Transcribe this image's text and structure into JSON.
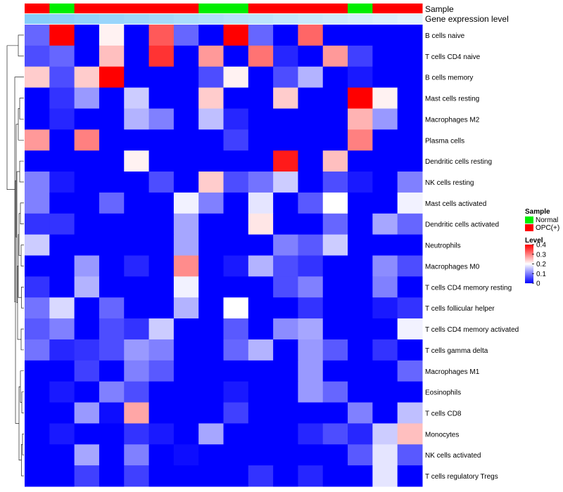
{
  "chart_data": {
    "type": "heatmap",
    "annotation_titles": {
      "sample": "Sample",
      "gene": "Gene expression level"
    },
    "sample_annotation": [
      "OPC(+)",
      "Normal",
      "OPC(+)",
      "OPC(+)",
      "OPC(+)",
      "OPC(+)",
      "OPC(+)",
      "Normal",
      "Normal",
      "OPC(+)",
      "OPC(+)",
      "OPC(+)",
      "OPC(+)",
      "Normal",
      "OPC(+)",
      "OPC(+)"
    ],
    "gene_expression_annotation": [
      1.0,
      0.95,
      0.9,
      0.85,
      0.8,
      0.75,
      0.7,
      0.65,
      0.6,
      0.55,
      0.5,
      0.45,
      0.4,
      0.35,
      0.3,
      0.25
    ],
    "rows": [
      "B cells naive",
      "T cells CD4 naive",
      "B cells memory",
      "Mast cells resting",
      "Macrophages M2",
      "Plasma cells",
      "Dendritic cells resting",
      "NK cells resting",
      "Mast cells activated",
      "Dendritic cells activated",
      "Neutrophils",
      "Macrophages M0",
      "T cells CD4 memory resting",
      "T cells follicular helper",
      "T cells CD4 memory activated",
      "T cells gamma delta",
      "Macrophages M1",
      "Eosinophils",
      "T cells CD8",
      "Monocytes",
      "NK cells activated",
      "T cells regulatory  Tregs"
    ],
    "values": [
      [
        0.08,
        0.4,
        0.0,
        0.21,
        0.0,
        0.33,
        0.08,
        0.0,
        0.4,
        0.08,
        0.0,
        0.32,
        0.0,
        0.0,
        0.0,
        0.0
      ],
      [
        0.06,
        0.08,
        0.0,
        0.25,
        0.0,
        0.36,
        0.0,
        0.28,
        0.0,
        0.31,
        0.03,
        0.0,
        0.28,
        0.05,
        0.0,
        0.0
      ],
      [
        0.24,
        0.06,
        0.24,
        0.4,
        0.0,
        0.0,
        0.0,
        0.06,
        0.21,
        0.0,
        0.06,
        0.14,
        0.0,
        0.02,
        0.0,
        0.0
      ],
      [
        0.0,
        0.04,
        0.12,
        0.0,
        0.16,
        0.0,
        0.0,
        0.24,
        0.0,
        0.0,
        0.24,
        0.0,
        0.0,
        0.4,
        0.21,
        0.0
      ],
      [
        0.0,
        0.03,
        0.0,
        0.0,
        0.14,
        0.1,
        0.0,
        0.15,
        0.03,
        0.0,
        0.0,
        0.0,
        0.0,
        0.26,
        0.12,
        0.0
      ],
      [
        0.28,
        0.0,
        0.3,
        0.0,
        0.0,
        0.0,
        0.0,
        0.0,
        0.05,
        0.0,
        0.0,
        0.0,
        0.0,
        0.3,
        0.0,
        0.0
      ],
      [
        0.0,
        0.0,
        0.0,
        0.0,
        0.21,
        0.0,
        0.0,
        0.0,
        0.0,
        0.0,
        0.38,
        0.0,
        0.25,
        0.0,
        0.0,
        0.0
      ],
      [
        0.1,
        0.02,
        0.0,
        0.0,
        0.0,
        0.06,
        0.0,
        0.24,
        0.06,
        0.09,
        0.16,
        0.0,
        0.06,
        0.02,
        0.0,
        0.1
      ],
      [
        0.1,
        0.0,
        0.0,
        0.08,
        0.0,
        0.0,
        0.19,
        0.1,
        0.0,
        0.18,
        0.0,
        0.07,
        0.2,
        0.0,
        0.0,
        0.19
      ],
      [
        0.04,
        0.04,
        0.0,
        0.0,
        0.0,
        0.0,
        0.13,
        0.0,
        0.0,
        0.22,
        0.0,
        0.0,
        0.08,
        0.0,
        0.13,
        0.08
      ],
      [
        0.16,
        0.0,
        0.0,
        0.0,
        0.0,
        0.0,
        0.13,
        0.0,
        0.0,
        0.0,
        0.1,
        0.07,
        0.16,
        0.0,
        0.0,
        0.0
      ],
      [
        0.0,
        0.0,
        0.12,
        0.0,
        0.03,
        0.0,
        0.29,
        0.0,
        0.02,
        0.14,
        0.06,
        0.04,
        0.0,
        0.0,
        0.11,
        0.06
      ],
      [
        0.04,
        0.0,
        0.14,
        0.0,
        0.0,
        0.0,
        0.19,
        0.0,
        0.0,
        0.0,
        0.06,
        0.1,
        0.0,
        0.0,
        0.1,
        0.0
      ],
      [
        0.09,
        0.17,
        0.0,
        0.08,
        0.0,
        0.0,
        0.14,
        0.0,
        0.2,
        0.0,
        0.0,
        0.04,
        0.0,
        0.0,
        0.02,
        0.04
      ],
      [
        0.07,
        0.1,
        0.0,
        0.06,
        0.04,
        0.16,
        0.0,
        0.0,
        0.07,
        0.0,
        0.11,
        0.13,
        0.0,
        0.0,
        0.0,
        0.19
      ],
      [
        0.09,
        0.03,
        0.04,
        0.06,
        0.12,
        0.1,
        0.0,
        0.0,
        0.08,
        0.14,
        0.0,
        0.12,
        0.07,
        0.0,
        0.04,
        0.0
      ],
      [
        0.0,
        0.0,
        0.05,
        0.0,
        0.1,
        0.07,
        0.0,
        0.0,
        0.0,
        0.0,
        0.0,
        0.12,
        0.0,
        0.0,
        0.0,
        0.08
      ],
      [
        0.0,
        0.02,
        0.0,
        0.1,
        0.06,
        0.0,
        0.0,
        0.0,
        0.02,
        0.0,
        0.0,
        0.12,
        0.08,
        0.0,
        0.0,
        0.0
      ],
      [
        0.0,
        0.0,
        0.12,
        0.01,
        0.27,
        0.0,
        0.0,
        0.0,
        0.05,
        0.0,
        0.0,
        0.0,
        0.0,
        0.1,
        0.0,
        0.15
      ],
      [
        0.0,
        0.02,
        0.0,
        0.0,
        0.04,
        0.02,
        0.0,
        0.13,
        0.0,
        0.0,
        0.0,
        0.03,
        0.06,
        0.03,
        0.16,
        0.25
      ],
      [
        0.0,
        0.0,
        0.13,
        0.0,
        0.1,
        0.0,
        0.01,
        0.0,
        0.0,
        0.0,
        0.0,
        0.0,
        0.0,
        0.07,
        0.18,
        0.07
      ],
      [
        0.0,
        0.0,
        0.05,
        0.0,
        0.05,
        0.0,
        0.0,
        0.0,
        0.0,
        0.04,
        0.0,
        0.03,
        0.0,
        0.0,
        0.18,
        0.0
      ]
    ],
    "legend": {
      "sample_title": "Sample",
      "sample_entries": [
        {
          "label": "Normal",
          "color": "#00ee00"
        },
        {
          "label": "OPC(+)",
          "color": "#ff0000"
        }
      ],
      "level_title": "Level",
      "level_ticks": [
        0.4,
        0.3,
        0.2,
        0.1,
        0
      ],
      "level_tick_labels": [
        "0.4",
        "0.3",
        "0.2",
        "0.1",
        "0"
      ]
    },
    "color_scale": {
      "low": "#0000ff",
      "mid": "#ffffff",
      "high": "#ff0000",
      "range": [
        0,
        0.4
      ]
    },
    "gene_expression_colors": {
      "high": "#87cefa",
      "low": "#ffffff"
    }
  }
}
